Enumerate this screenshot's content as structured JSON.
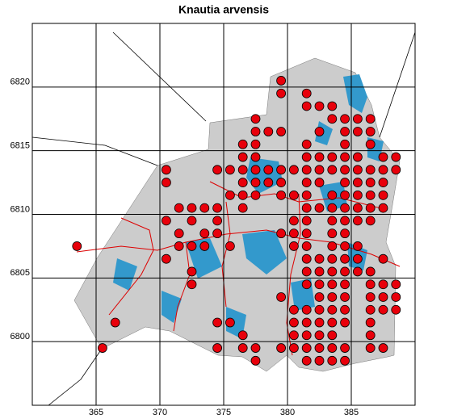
{
  "chart_data": {
    "type": "scatter",
    "title": "Knautia arvensis",
    "xlim": [
      360,
      390
    ],
    "ylim": [
      6795,
      6825
    ],
    "xticks": [
      365,
      370,
      375,
      380,
      385
    ],
    "yticks": [
      6800,
      6805,
      6810,
      6815,
      6820
    ],
    "grid": true,
    "color": "#e8000b",
    "x": [
      379.5,
      379.5,
      381.5,
      381.5,
      382.5,
      383.5,
      377.5,
      383.5,
      384.5,
      385.5,
      386.5,
      377.5,
      378.5,
      379.5,
      382.5,
      384.5,
      385.5,
      386.5,
      376.5,
      377.5,
      381.5,
      384.5,
      386.5,
      376.5,
      377.5,
      381.5,
      382.5,
      383.5,
      384.5,
      385.5,
      387.5,
      388.5,
      370.5,
      374.5,
      375.5,
      376.5,
      377.5,
      378.5,
      379.5,
      380.5,
      381.5,
      382.5,
      383.5,
      384.5,
      385.5,
      386.5,
      387.5,
      388.5,
      370.5,
      376.5,
      377.5,
      378.5,
      379.5,
      381.5,
      382.5,
      384.5,
      385.5,
      386.5,
      387.5,
      375.5,
      376.5,
      377.5,
      379.5,
      380.5,
      381.5,
      383.5,
      384.5,
      385.5,
      386.5,
      387.5,
      371.5,
      372.5,
      373.5,
      374.5,
      376.5,
      381.5,
      382.5,
      383.5,
      384.5,
      385.5,
      386.5,
      387.5,
      370.5,
      372.5,
      374.5,
      380.5,
      381.5,
      383.5,
      384.5,
      385.5,
      386.5,
      371.5,
      373.5,
      374.5,
      379.5,
      380.5,
      381.5,
      383.5,
      384.5,
      363.5,
      371.5,
      372.5,
      373.5,
      375.5,
      380.5,
      381.5,
      383.5,
      384.5,
      385.5,
      370.5,
      381.5,
      382.5,
      383.5,
      384.5,
      385.5,
      387.5,
      372.5,
      381.5,
      382.5,
      383.5,
      384.5,
      385.5,
      386.5,
      372.5,
      381.5,
      382.5,
      383.5,
      384.5,
      386.5,
      387.5,
      388.5,
      379.5,
      382.5,
      383.5,
      384.5,
      386.5,
      387.5,
      388.5,
      380.5,
      381.5,
      382.5,
      383.5,
      384.5,
      386.5,
      387.5,
      388.5,
      366.5,
      374.5,
      375.5,
      380.5,
      381.5,
      382.5,
      383.5,
      384.5,
      386.5,
      376.5,
      380.5,
      381.5,
      382.5,
      383.5,
      386.5,
      365.5,
      374.5,
      376.5,
      377.5,
      379.5,
      380.5,
      381.5,
      382.5,
      383.5,
      384.5,
      386.5,
      387.5,
      377.5,
      381.5,
      382.5,
      383.5,
      384.5
    ],
    "values": [
      6820.5,
      6819.5,
      6819.5,
      6818.5,
      6818.5,
      6818.5,
      6817.5,
      6817.5,
      6817.5,
      6817.5,
      6817.5,
      6816.5,
      6816.5,
      6816.5,
      6816.5,
      6816.5,
      6816.5,
      6816.5,
      6815.5,
      6815.5,
      6815.5,
      6815.5,
      6815.5,
      6814.5,
      6814.5,
      6814.5,
      6814.5,
      6814.5,
      6814.5,
      6814.5,
      6814.5,
      6814.5,
      6813.5,
      6813.5,
      6813.5,
      6813.5,
      6813.5,
      6813.5,
      6813.5,
      6813.5,
      6813.5,
      6813.5,
      6813.5,
      6813.5,
      6813.5,
      6813.5,
      6813.5,
      6813.5,
      6812.5,
      6812.5,
      6812.5,
      6812.5,
      6812.5,
      6812.5,
      6812.5,
      6812.5,
      6812.5,
      6812.5,
      6812.5,
      6811.5,
      6811.5,
      6811.5,
      6811.5,
      6811.5,
      6811.5,
      6811.5,
      6811.5,
      6811.5,
      6811.5,
      6811.5,
      6810.5,
      6810.5,
      6810.5,
      6810.5,
      6810.5,
      6810.5,
      6810.5,
      6810.5,
      6810.5,
      6810.5,
      6810.5,
      6810.5,
      6809.5,
      6809.5,
      6809.5,
      6809.5,
      6809.5,
      6809.5,
      6809.5,
      6809.5,
      6809.5,
      6808.5,
      6808.5,
      6808.5,
      6808.5,
      6808.5,
      6808.5,
      6808.5,
      6808.5,
      6807.5,
      6807.5,
      6807.5,
      6807.5,
      6807.5,
      6807.5,
      6807.5,
      6807.5,
      6807.5,
      6807.5,
      6806.5,
      6806.5,
      6806.5,
      6806.5,
      6806.5,
      6806.5,
      6806.5,
      6805.5,
      6805.5,
      6805.5,
      6805.5,
      6805.5,
      6805.5,
      6805.5,
      6804.5,
      6804.5,
      6804.5,
      6804.5,
      6804.5,
      6804.5,
      6804.5,
      6804.5,
      6803.5,
      6803.5,
      6803.5,
      6803.5,
      6803.5,
      6803.5,
      6803.5,
      6802.5,
      6802.5,
      6802.5,
      6802.5,
      6802.5,
      6802.5,
      6802.5,
      6802.5,
      6801.5,
      6801.5,
      6801.5,
      6801.5,
      6801.5,
      6801.5,
      6801.5,
      6801.5,
      6801.5,
      6800.5,
      6800.5,
      6800.5,
      6800.5,
      6800.5,
      6800.5,
      6799.5,
      6799.5,
      6799.5,
      6799.5,
      6799.5,
      6799.5,
      6799.5,
      6799.5,
      6799.5,
      6799.5,
      6799.5,
      6799.5,
      6798.5,
      6798.5,
      6798.5,
      6798.5,
      6798.5
    ]
  }
}
